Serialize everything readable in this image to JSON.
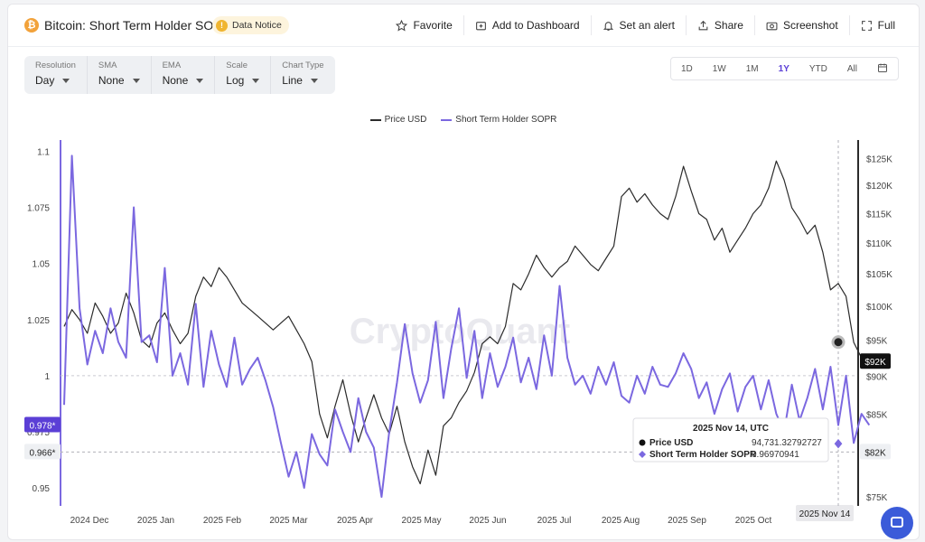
{
  "header": {
    "coin_glyph": "₿",
    "title": "Bitcoin: Short Term Holder SOPR",
    "notice": "Data Notice",
    "actions": [
      {
        "name": "favorite",
        "label": "Favorite",
        "icon": "star-icon"
      },
      {
        "name": "add-to-dashboard",
        "label": "Add to Dashboard",
        "icon": "dashboard-add-icon"
      },
      {
        "name": "set-alert",
        "label": "Set an alert",
        "icon": "bell-icon"
      },
      {
        "name": "share",
        "label": "Share",
        "icon": "share-icon"
      },
      {
        "name": "screenshot",
        "label": "Screenshot",
        "icon": "camera-icon"
      },
      {
        "name": "full",
        "label": "Full",
        "icon": "fullscreen-icon"
      }
    ]
  },
  "controls": [
    {
      "name": "resolution",
      "label": "Resolution",
      "value": "Day"
    },
    {
      "name": "sma",
      "label": "SMA",
      "value": "None"
    },
    {
      "name": "ema",
      "label": "EMA",
      "value": "None"
    },
    {
      "name": "scale",
      "label": "Scale",
      "value": "Log"
    },
    {
      "name": "chart-type",
      "label": "Chart Type",
      "value": "Line"
    }
  ],
  "ranges": [
    "1D",
    "1W",
    "1M",
    "1Y",
    "YTD",
    "All"
  ],
  "active_range": "1Y",
  "colors": {
    "price": "#2b2b2b",
    "sopr": "#7b68e0",
    "accent": "#5b3fd6",
    "notice_bg": "#fdf4dd"
  },
  "chart_data": {
    "type": "line",
    "watermark": "CryptoQuant",
    "legend": [
      "Price USD",
      "Short Term Holder SOPR"
    ],
    "x_ticks": [
      "2024 Dec",
      "2025 Jan",
      "2025 Feb",
      "2025 Mar",
      "2025 Apr",
      "2025 May",
      "2025 Jun",
      "2025 Jul",
      "2025 Aug",
      "2025 Sep",
      "2025 Oct"
    ],
    "x_end_label": "2025 Nov 14",
    "left_axis": {
      "scale": "linear",
      "range": [
        0.942,
        1.105
      ],
      "ticks": [
        "1.1",
        "1.075",
        "1.05",
        "1.025",
        "1",
        "0.975",
        "0.95"
      ],
      "ref_line": 1
    },
    "right_axis": {
      "scale": "log",
      "range": [
        74000,
        128500
      ],
      "ticks": [
        "$125K",
        "$120K",
        "$115K",
        "$110K",
        "$105K",
        "$100K",
        "$95K",
        "$90K",
        "$85K",
        "$80K",
        "$75K"
      ]
    },
    "badges": {
      "sopr_current": "0.978*",
      "sopr_marker": "0.966*",
      "price_current": "$92K",
      "price_marker": "$82K"
    },
    "tooltip": {
      "title": "2025 Nov 14, UTC",
      "rows": [
        {
          "label": "Price USD",
          "value": "94,731.32792727"
        },
        {
          "label": "Short Term Holder SOPR",
          "value": "0.96970941"
        }
      ]
    },
    "series": [
      {
        "name": "Price USD",
        "axis": "right",
        "points": [
          [
            0.0,
            97000
          ],
          [
            0.01,
            99500
          ],
          [
            0.02,
            98000
          ],
          [
            0.03,
            96000
          ],
          [
            0.04,
            100500
          ],
          [
            0.05,
            98500
          ],
          [
            0.06,
            96000
          ],
          [
            0.07,
            97500
          ],
          [
            0.08,
            102000
          ],
          [
            0.09,
            99000
          ],
          [
            0.1,
            95000
          ],
          [
            0.11,
            94000
          ],
          [
            0.12,
            97500
          ],
          [
            0.13,
            99000
          ],
          [
            0.14,
            96500
          ],
          [
            0.15,
            94500
          ],
          [
            0.16,
            96000
          ],
          [
            0.17,
            101500
          ],
          [
            0.18,
            104500
          ],
          [
            0.19,
            103000
          ],
          [
            0.2,
            106000
          ],
          [
            0.21,
            104500
          ],
          [
            0.22,
            102500
          ],
          [
            0.23,
            100500
          ],
          [
            0.24,
            99500
          ],
          [
            0.25,
            98500
          ],
          [
            0.26,
            97500
          ],
          [
            0.27,
            96500
          ],
          [
            0.28,
            97500
          ],
          [
            0.29,
            98500
          ],
          [
            0.3,
            96500
          ],
          [
            0.31,
            94500
          ],
          [
            0.32,
            92000
          ],
          [
            0.33,
            85000
          ],
          [
            0.34,
            82000
          ],
          [
            0.35,
            86000
          ],
          [
            0.36,
            89500
          ],
          [
            0.37,
            85000
          ],
          [
            0.38,
            81500
          ],
          [
            0.39,
            84500
          ],
          [
            0.4,
            87500
          ],
          [
            0.41,
            84500
          ],
          [
            0.42,
            82500
          ],
          [
            0.43,
            86000
          ],
          [
            0.44,
            81500
          ],
          [
            0.45,
            78500
          ],
          [
            0.46,
            76500
          ],
          [
            0.47,
            80500
          ],
          [
            0.48,
            77500
          ],
          [
            0.49,
            83500
          ],
          [
            0.5,
            84500
          ],
          [
            0.51,
            86500
          ],
          [
            0.52,
            88000
          ],
          [
            0.53,
            90500
          ],
          [
            0.54,
            94500
          ],
          [
            0.55,
            95500
          ],
          [
            0.56,
            94500
          ],
          [
            0.57,
            97000
          ],
          [
            0.58,
            103500
          ],
          [
            0.59,
            102500
          ],
          [
            0.6,
            105000
          ],
          [
            0.61,
            108000
          ],
          [
            0.62,
            106000
          ],
          [
            0.63,
            104500
          ],
          [
            0.64,
            106000
          ],
          [
            0.65,
            107000
          ],
          [
            0.66,
            109500
          ],
          [
            0.67,
            108000
          ],
          [
            0.68,
            106500
          ],
          [
            0.69,
            105500
          ],
          [
            0.7,
            107500
          ],
          [
            0.71,
            109500
          ],
          [
            0.72,
            118000
          ],
          [
            0.73,
            119500
          ],
          [
            0.74,
            117000
          ],
          [
            0.75,
            118500
          ],
          [
            0.76,
            116500
          ],
          [
            0.77,
            115000
          ],
          [
            0.78,
            114000
          ],
          [
            0.79,
            118000
          ],
          [
            0.8,
            123500
          ],
          [
            0.81,
            119000
          ],
          [
            0.82,
            115000
          ],
          [
            0.83,
            114000
          ],
          [
            0.84,
            110500
          ],
          [
            0.85,
            112500
          ],
          [
            0.86,
            108500
          ],
          [
            0.87,
            110500
          ],
          [
            0.88,
            112500
          ],
          [
            0.89,
            115000
          ],
          [
            0.9,
            116500
          ],
          [
            0.91,
            119500
          ],
          [
            0.92,
            124500
          ],
          [
            0.93,
            121000
          ],
          [
            0.94,
            116000
          ],
          [
            0.95,
            114000
          ],
          [
            0.96,
            111500
          ],
          [
            0.97,
            113000
          ],
          [
            0.98,
            108500
          ],
          [
            0.99,
            102500
          ],
          [
            1.0,
            103500
          ],
          [
            1.01,
            101500
          ],
          [
            1.02,
            94700
          ],
          [
            1.03,
            92500
          ],
          [
            1.04,
            91500
          ]
        ]
      },
      {
        "name": "Short Term Holder SOPR",
        "axis": "left",
        "points": [
          [
            0.0,
            0.987
          ],
          [
            0.01,
            1.098
          ],
          [
            0.02,
            1.03
          ],
          [
            0.03,
            1.005
          ],
          [
            0.04,
            1.02
          ],
          [
            0.05,
            1.01
          ],
          [
            0.06,
            1.03
          ],
          [
            0.07,
            1.015
          ],
          [
            0.08,
            1.008
          ],
          [
            0.09,
            1.075
          ],
          [
            0.1,
            1.015
          ],
          [
            0.11,
            1.018
          ],
          [
            0.12,
            1.006
          ],
          [
            0.13,
            1.048
          ],
          [
            0.14,
            1.0
          ],
          [
            0.15,
            1.01
          ],
          [
            0.16,
            0.996
          ],
          [
            0.17,
            1.032
          ],
          [
            0.18,
            0.995
          ],
          [
            0.19,
            1.02
          ],
          [
            0.2,
            1.005
          ],
          [
            0.21,
            0.995
          ],
          [
            0.22,
            1.017
          ],
          [
            0.23,
            0.996
          ],
          [
            0.24,
            1.003
          ],
          [
            0.25,
            1.008
          ],
          [
            0.26,
            0.998
          ],
          [
            0.27,
            0.986
          ],
          [
            0.28,
            0.97
          ],
          [
            0.29,
            0.955
          ],
          [
            0.3,
            0.966
          ],
          [
            0.31,
            0.95
          ],
          [
            0.32,
            0.974
          ],
          [
            0.33,
            0.965
          ],
          [
            0.34,
            0.96
          ],
          [
            0.35,
            0.985
          ],
          [
            0.36,
            0.975
          ],
          [
            0.37,
            0.966
          ],
          [
            0.38,
            0.99
          ],
          [
            0.39,
            0.975
          ],
          [
            0.4,
            0.968
          ],
          [
            0.41,
            0.946
          ],
          [
            0.42,
            0.975
          ],
          [
            0.43,
            0.997
          ],
          [
            0.44,
            1.023
          ],
          [
            0.45,
            1.001
          ],
          [
            0.46,
            0.988
          ],
          [
            0.47,
            0.998
          ],
          [
            0.48,
            1.024
          ],
          [
            0.49,
            0.99
          ],
          [
            0.5,
            1.012
          ],
          [
            0.51,
            1.03
          ],
          [
            0.52,
            0.999
          ],
          [
            0.53,
            1.02
          ],
          [
            0.54,
            0.99
          ],
          [
            0.55,
            1.01
          ],
          [
            0.56,
            0.995
          ],
          [
            0.57,
            1.004
          ],
          [
            0.58,
            1.017
          ],
          [
            0.59,
            0.997
          ],
          [
            0.6,
            1.008
          ],
          [
            0.61,
            0.994
          ],
          [
            0.62,
            1.018
          ],
          [
            0.63,
            1.0
          ],
          [
            0.64,
            1.04
          ],
          [
            0.65,
            1.008
          ],
          [
            0.66,
            0.996
          ],
          [
            0.67,
            1.0
          ],
          [
            0.68,
            0.992
          ],
          [
            0.69,
            1.004
          ],
          [
            0.7,
            0.996
          ],
          [
            0.71,
            1.006
          ],
          [
            0.72,
            0.991
          ],
          [
            0.73,
            0.988
          ],
          [
            0.74,
            1.0
          ],
          [
            0.75,
            0.992
          ],
          [
            0.76,
            1.004
          ],
          [
            0.77,
            0.996
          ],
          [
            0.78,
            0.995
          ],
          [
            0.79,
            1.001
          ],
          [
            0.8,
            1.01
          ],
          [
            0.81,
            1.003
          ],
          [
            0.82,
            0.99
          ],
          [
            0.83,
            0.997
          ],
          [
            0.84,
            0.983
          ],
          [
            0.85,
            0.994
          ],
          [
            0.86,
            1.001
          ],
          [
            0.87,
            0.984
          ],
          [
            0.88,
            0.995
          ],
          [
            0.89,
            1.0
          ],
          [
            0.9,
            0.985
          ],
          [
            0.91,
            0.998
          ],
          [
            0.92,
            0.983
          ],
          [
            0.93,
            0.975
          ],
          [
            0.94,
            0.996
          ],
          [
            0.95,
            0.98
          ],
          [
            0.96,
            0.99
          ],
          [
            0.97,
            1.003
          ],
          [
            0.98,
            0.985
          ],
          [
            0.99,
            1.004
          ],
          [
            1.0,
            0.978
          ],
          [
            1.01,
            1.0
          ],
          [
            1.02,
            0.97
          ],
          [
            1.03,
            0.983
          ],
          [
            1.04,
            0.978
          ]
        ]
      }
    ]
  }
}
